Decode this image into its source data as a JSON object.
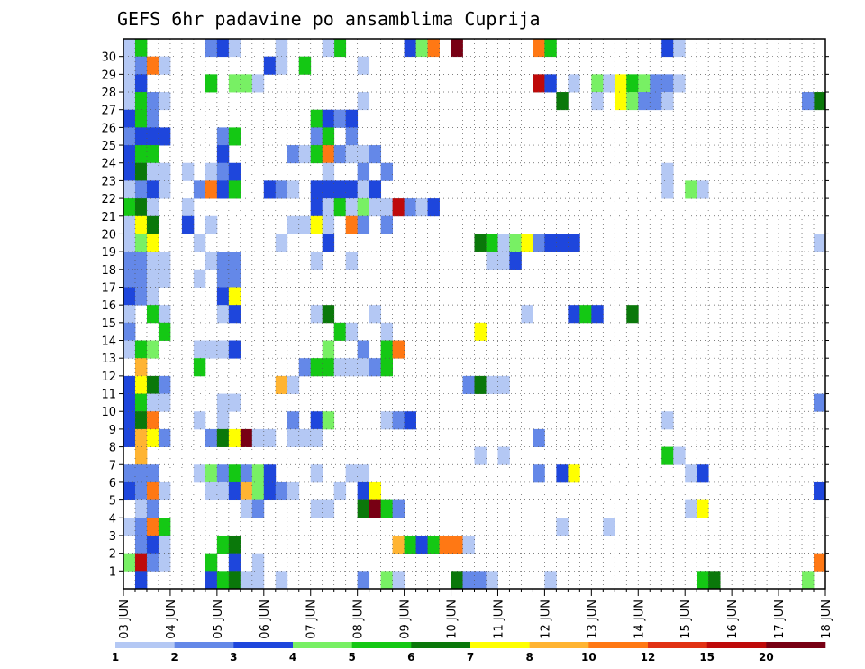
{
  "chart_data": {
    "type": "heatmap",
    "title": "GEFS 6hr padavine po ansamblima Cuprija",
    "x_tick_labels": [
      "03 JUN",
      "04 JUN",
      "05 JUN",
      "06 JUN",
      "07 JUN",
      "08 JUN",
      "09 JUN",
      "10 JUN",
      "11 JUN",
      "12 JUN",
      "13 JUN",
      "14 JUN",
      "15 JUN",
      "16 JUN",
      "17 JUN",
      "18 JUN"
    ],
    "y_tick_labels": [
      "1",
      "2",
      "3",
      "4",
      "5",
      "6",
      "7",
      "8",
      "9",
      "10",
      "11",
      "12",
      "13",
      "14",
      "15",
      "16",
      "17",
      "18",
      "19",
      "20",
      "21",
      "22",
      "23",
      "24",
      "25",
      "26",
      "27",
      "28",
      "29",
      "30"
    ],
    "xlim": [
      0,
      60
    ],
    "ylim": [
      0,
      30
    ],
    "grid": true,
    "colorbar": {
      "labels": [
        "1",
        "2",
        "3",
        "4",
        "5",
        "6",
        "7",
        "8",
        "10",
        "12",
        "15",
        "20"
      ],
      "colors": [
        "#b4c8f4",
        "#6488e8",
        "#1e46dc",
        "#78f064",
        "#14c814",
        "#0a780a",
        "#ffff00",
        "#ffb432",
        "#ff7814",
        "#e13214",
        "#be0a0a",
        "#780014"
      ]
    },
    "cells_note": "each cell: [x_index(6h step from 03 JUN 00z), member(0-30), class(1-12)]",
    "cells": [
      [
        0,
        30,
        1
      ],
      [
        1,
        30,
        5
      ],
      [
        7,
        30,
        2
      ],
      [
        8,
        30,
        3
      ],
      [
        9,
        30,
        1
      ],
      [
        13,
        30,
        1
      ],
      [
        18,
        30,
        5
      ],
      [
        17,
        30,
        1
      ],
      [
        24,
        30,
        3
      ],
      [
        25,
        30,
        4
      ],
      [
        26,
        30,
        9
      ],
      [
        28,
        30,
        12
      ],
      [
        35,
        30,
        9
      ],
      [
        36,
        30,
        5
      ],
      [
        46,
        30,
        3
      ],
      [
        47,
        30,
        1
      ],
      [
        0,
        29,
        1
      ],
      [
        1,
        29,
        2
      ],
      [
        2,
        29,
        9
      ],
      [
        3,
        29,
        1
      ],
      [
        12,
        29,
        3
      ],
      [
        13,
        29,
        1
      ],
      [
        15,
        29,
        5
      ],
      [
        20,
        29,
        1
      ],
      [
        0,
        28,
        1
      ],
      [
        1,
        28,
        3
      ],
      [
        7,
        28,
        5
      ],
      [
        9,
        28,
        4
      ],
      [
        10,
        28,
        4
      ],
      [
        11,
        28,
        1
      ],
      [
        35,
        28,
        11
      ],
      [
        36,
        28,
        3
      ],
      [
        38,
        28,
        1
      ],
      [
        40,
        28,
        4
      ],
      [
        41,
        28,
        1
      ],
      [
        42,
        28,
        7
      ],
      [
        43,
        28,
        5
      ],
      [
        44,
        28,
        4
      ],
      [
        45,
        28,
        2
      ],
      [
        46,
        28,
        2
      ],
      [
        47,
        28,
        1
      ],
      [
        0,
        27,
        1
      ],
      [
        1,
        27,
        5
      ],
      [
        2,
        27,
        2
      ],
      [
        3,
        27,
        1
      ],
      [
        20,
        27,
        1
      ],
      [
        37,
        27,
        6
      ],
      [
        40,
        27,
        1
      ],
      [
        42,
        27,
        7
      ],
      [
        43,
        27,
        4
      ],
      [
        44,
        27,
        2
      ],
      [
        45,
        27,
        2
      ],
      [
        46,
        27,
        1
      ],
      [
        59,
        27,
        6
      ],
      [
        58,
        27,
        2
      ],
      [
        0,
        26,
        3
      ],
      [
        1,
        26,
        5
      ],
      [
        2,
        26,
        2
      ],
      [
        16,
        26,
        5
      ],
      [
        17,
        26,
        3
      ],
      [
        18,
        26,
        2
      ],
      [
        19,
        26,
        3
      ],
      [
        0,
        25,
        2
      ],
      [
        1,
        25,
        3
      ],
      [
        2,
        25,
        3
      ],
      [
        3,
        25,
        3
      ],
      [
        8,
        25,
        2
      ],
      [
        9,
        25,
        5
      ],
      [
        16,
        25,
        2
      ],
      [
        17,
        25,
        5
      ],
      [
        19,
        25,
        2
      ],
      [
        0,
        24,
        3
      ],
      [
        1,
        24,
        5
      ],
      [
        2,
        24,
        5
      ],
      [
        8,
        24,
        3
      ],
      [
        14,
        24,
        2
      ],
      [
        15,
        24,
        1
      ],
      [
        16,
        24,
        5
      ],
      [
        17,
        24,
        9
      ],
      [
        18,
        24,
        2
      ],
      [
        19,
        24,
        1
      ],
      [
        20,
        24,
        1
      ],
      [
        21,
        24,
        2
      ],
      [
        0,
        23,
        3
      ],
      [
        1,
        23,
        6
      ],
      [
        2,
        23,
        1
      ],
      [
        3,
        23,
        1
      ],
      [
        5,
        23,
        1
      ],
      [
        7,
        23,
        1
      ],
      [
        8,
        23,
        2
      ],
      [
        9,
        23,
        3
      ],
      [
        17,
        23,
        1
      ],
      [
        20,
        23,
        2
      ],
      [
        22,
        23,
        2
      ],
      [
        46,
        23,
        1
      ],
      [
        0,
        22,
        1
      ],
      [
        1,
        22,
        2
      ],
      [
        2,
        22,
        3
      ],
      [
        3,
        22,
        1
      ],
      [
        6,
        22,
        2
      ],
      [
        7,
        22,
        9
      ],
      [
        8,
        22,
        3
      ],
      [
        9,
        22,
        5
      ],
      [
        12,
        22,
        3
      ],
      [
        13,
        22,
        2
      ],
      [
        14,
        22,
        1
      ],
      [
        16,
        22,
        3
      ],
      [
        17,
        22,
        3
      ],
      [
        18,
        22,
        3
      ],
      [
        19,
        22,
        3
      ],
      [
        20,
        22,
        1
      ],
      [
        21,
        22,
        3
      ],
      [
        46,
        22,
        1
      ],
      [
        48,
        22,
        4
      ],
      [
        49,
        22,
        1
      ],
      [
        0,
        21,
        5
      ],
      [
        1,
        21,
        6
      ],
      [
        2,
        21,
        1
      ],
      [
        5,
        21,
        1
      ],
      [
        16,
        21,
        3
      ],
      [
        17,
        21,
        1
      ],
      [
        18,
        21,
        5
      ],
      [
        19,
        21,
        1
      ],
      [
        20,
        21,
        4
      ],
      [
        21,
        21,
        1
      ],
      [
        22,
        21,
        1
      ],
      [
        23,
        21,
        11
      ],
      [
        24,
        21,
        2
      ],
      [
        25,
        21,
        1
      ],
      [
        26,
        21,
        3
      ],
      [
        0,
        20,
        1
      ],
      [
        1,
        20,
        7
      ],
      [
        2,
        20,
        6
      ],
      [
        5,
        20,
        3
      ],
      [
        7,
        20,
        1
      ],
      [
        14,
        20,
        1
      ],
      [
        15,
        20,
        1
      ],
      [
        16,
        20,
        7
      ],
      [
        17,
        20,
        1
      ],
      [
        19,
        20,
        9
      ],
      [
        20,
        20,
        2
      ],
      [
        22,
        20,
        2
      ],
      [
        0,
        19,
        1
      ],
      [
        1,
        19,
        4
      ],
      [
        2,
        19,
        7
      ],
      [
        6,
        19,
        1
      ],
      [
        13,
        19,
        1
      ],
      [
        17,
        19,
        3
      ],
      [
        30,
        19,
        6
      ],
      [
        31,
        19,
        5
      ],
      [
        32,
        19,
        1
      ],
      [
        33,
        19,
        4
      ],
      [
        34,
        19,
        7
      ],
      [
        35,
        19,
        2
      ],
      [
        36,
        19,
        3
      ],
      [
        37,
        19,
        3
      ],
      [
        38,
        19,
        3
      ],
      [
        59,
        19,
        1
      ],
      [
        0,
        18,
        2
      ],
      [
        1,
        18,
        2
      ],
      [
        2,
        18,
        1
      ],
      [
        3,
        18,
        1
      ],
      [
        7,
        18,
        1
      ],
      [
        8,
        18,
        2
      ],
      [
        9,
        18,
        2
      ],
      [
        16,
        18,
        1
      ],
      [
        19,
        18,
        1
      ],
      [
        31,
        18,
        1
      ],
      [
        32,
        18,
        1
      ],
      [
        33,
        18,
        3
      ],
      [
        0,
        17,
        2
      ],
      [
        1,
        17,
        2
      ],
      [
        2,
        17,
        1
      ],
      [
        3,
        17,
        1
      ],
      [
        6,
        17,
        1
      ],
      [
        8,
        17,
        2
      ],
      [
        9,
        17,
        2
      ],
      [
        0,
        16,
        3
      ],
      [
        1,
        16,
        2
      ],
      [
        2,
        16,
        1
      ],
      [
        8,
        16,
        3
      ],
      [
        9,
        16,
        7
      ],
      [
        0,
        15,
        1
      ],
      [
        2,
        15,
        5
      ],
      [
        3,
        15,
        1
      ],
      [
        8,
        15,
        1
      ],
      [
        9,
        15,
        3
      ],
      [
        16,
        15,
        1
      ],
      [
        17,
        15,
        6
      ],
      [
        21,
        15,
        1
      ],
      [
        34,
        15,
        1
      ],
      [
        38,
        15,
        3
      ],
      [
        39,
        15,
        5
      ],
      [
        40,
        15,
        3
      ],
      [
        43,
        15,
        6
      ],
      [
        0,
        14,
        2
      ],
      [
        3,
        14,
        5
      ],
      [
        18,
        14,
        5
      ],
      [
        19,
        14,
        1
      ],
      [
        22,
        14,
        1
      ],
      [
        30,
        14,
        7
      ],
      [
        0,
        13,
        1
      ],
      [
        1,
        13,
        5
      ],
      [
        2,
        13,
        4
      ],
      [
        6,
        13,
        1
      ],
      [
        7,
        13,
        1
      ],
      [
        8,
        13,
        1
      ],
      [
        9,
        13,
        3
      ],
      [
        17,
        13,
        4
      ],
      [
        20,
        13,
        2
      ],
      [
        22,
        13,
        5
      ],
      [
        23,
        13,
        9
      ],
      [
        1,
        12,
        8
      ],
      [
        6,
        12,
        5
      ],
      [
        15,
        12,
        2
      ],
      [
        16,
        12,
        5
      ],
      [
        17,
        12,
        5
      ],
      [
        18,
        12,
        1
      ],
      [
        19,
        12,
        1
      ],
      [
        20,
        12,
        1
      ],
      [
        21,
        12,
        2
      ],
      [
        22,
        12,
        5
      ],
      [
        0,
        11,
        3
      ],
      [
        1,
        11,
        7
      ],
      [
        2,
        11,
        6
      ],
      [
        3,
        11,
        2
      ],
      [
        13,
        11,
        8
      ],
      [
        14,
        11,
        1
      ],
      [
        29,
        11,
        2
      ],
      [
        30,
        11,
        6
      ],
      [
        31,
        11,
        1
      ],
      [
        32,
        11,
        1
      ],
      [
        0,
        10,
        3
      ],
      [
        1,
        10,
        5
      ],
      [
        2,
        10,
        1
      ],
      [
        3,
        10,
        1
      ],
      [
        8,
        10,
        1
      ],
      [
        9,
        10,
        1
      ],
      [
        59,
        10,
        2
      ],
      [
        0,
        9,
        3
      ],
      [
        1,
        9,
        6
      ],
      [
        2,
        9,
        9
      ],
      [
        6,
        9,
        1
      ],
      [
        8,
        9,
        1
      ],
      [
        14,
        9,
        2
      ],
      [
        16,
        9,
        3
      ],
      [
        17,
        9,
        4
      ],
      [
        22,
        9,
        1
      ],
      [
        23,
        9,
        2
      ],
      [
        24,
        9,
        3
      ],
      [
        46,
        9,
        1
      ],
      [
        0,
        8,
        3
      ],
      [
        1,
        8,
        8
      ],
      [
        2,
        8,
        7
      ],
      [
        3,
        8,
        2
      ],
      [
        7,
        8,
        2
      ],
      [
        8,
        8,
        6
      ],
      [
        9,
        8,
        7
      ],
      [
        10,
        8,
        12
      ],
      [
        11,
        8,
        1
      ],
      [
        12,
        8,
        1
      ],
      [
        14,
        8,
        1
      ],
      [
        15,
        8,
        1
      ],
      [
        16,
        8,
        1
      ],
      [
        35,
        8,
        2
      ],
      [
        1,
        7,
        8
      ],
      [
        30,
        7,
        1
      ],
      [
        32,
        7,
        1
      ],
      [
        46,
        7,
        5
      ],
      [
        47,
        7,
        1
      ],
      [
        0,
        6,
        2
      ],
      [
        1,
        6,
        2
      ],
      [
        2,
        6,
        2
      ],
      [
        6,
        6,
        1
      ],
      [
        7,
        6,
        4
      ],
      [
        8,
        6,
        2
      ],
      [
        9,
        6,
        5
      ],
      [
        10,
        6,
        2
      ],
      [
        11,
        6,
        4
      ],
      [
        12,
        6,
        3
      ],
      [
        16,
        6,
        1
      ],
      [
        19,
        6,
        1
      ],
      [
        20,
        6,
        1
      ],
      [
        35,
        6,
        2
      ],
      [
        37,
        6,
        3
      ],
      [
        38,
        6,
        7
      ],
      [
        48,
        6,
        1
      ],
      [
        49,
        6,
        3
      ],
      [
        0,
        5,
        3
      ],
      [
        1,
        5,
        2
      ],
      [
        2,
        5,
        9
      ],
      [
        3,
        5,
        1
      ],
      [
        7,
        5,
        1
      ],
      [
        8,
        5,
        1
      ],
      [
        9,
        5,
        3
      ],
      [
        10,
        5,
        8
      ],
      [
        11,
        5,
        4
      ],
      [
        12,
        5,
        3
      ],
      [
        13,
        5,
        2
      ],
      [
        14,
        5,
        1
      ],
      [
        18,
        5,
        1
      ],
      [
        20,
        5,
        3
      ],
      [
        21,
        5,
        7
      ],
      [
        59,
        5,
        3
      ],
      [
        1,
        4,
        1
      ],
      [
        2,
        4,
        2
      ],
      [
        10,
        4,
        1
      ],
      [
        11,
        4,
        2
      ],
      [
        16,
        4,
        1
      ],
      [
        17,
        4,
        1
      ],
      [
        20,
        4,
        6
      ],
      [
        21,
        4,
        12
      ],
      [
        22,
        4,
        5
      ],
      [
        23,
        4,
        2
      ],
      [
        48,
        4,
        1
      ],
      [
        49,
        4,
        7
      ],
      [
        0,
        3,
        1
      ],
      [
        1,
        3,
        2
      ],
      [
        2,
        3,
        9
      ],
      [
        3,
        3,
        5
      ],
      [
        37,
        3,
        1
      ],
      [
        41,
        3,
        1
      ],
      [
        1,
        2,
        2
      ],
      [
        2,
        2,
        3
      ],
      [
        3,
        2,
        1
      ],
      [
        8,
        2,
        5
      ],
      [
        9,
        2,
        6
      ],
      [
        23,
        2,
        8
      ],
      [
        24,
        2,
        5
      ],
      [
        25,
        2,
        3
      ],
      [
        26,
        2,
        5
      ],
      [
        27,
        2,
        9
      ],
      [
        28,
        2,
        9
      ],
      [
        29,
        2,
        1
      ],
      [
        0,
        1,
        4
      ],
      [
        1,
        1,
        11
      ],
      [
        2,
        1,
        2
      ],
      [
        3,
        1,
        1
      ],
      [
        7,
        1,
        5
      ],
      [
        9,
        1,
        3
      ],
      [
        11,
        1,
        1
      ],
      [
        59,
        1,
        9
      ],
      [
        1,
        0,
        3
      ],
      [
        7,
        0,
        3
      ],
      [
        8,
        0,
        5
      ],
      [
        9,
        0,
        6
      ],
      [
        10,
        0,
        1
      ],
      [
        11,
        0,
        1
      ],
      [
        13,
        0,
        1
      ],
      [
        20,
        0,
        2
      ],
      [
        22,
        0,
        4
      ],
      [
        23,
        0,
        1
      ],
      [
        28,
        0,
        6
      ],
      [
        29,
        0,
        2
      ],
      [
        30,
        0,
        2
      ],
      [
        31,
        0,
        1
      ],
      [
        36,
        0,
        1
      ],
      [
        49,
        0,
        5
      ],
      [
        50,
        0,
        6
      ],
      [
        58,
        0,
        4
      ]
    ]
  }
}
